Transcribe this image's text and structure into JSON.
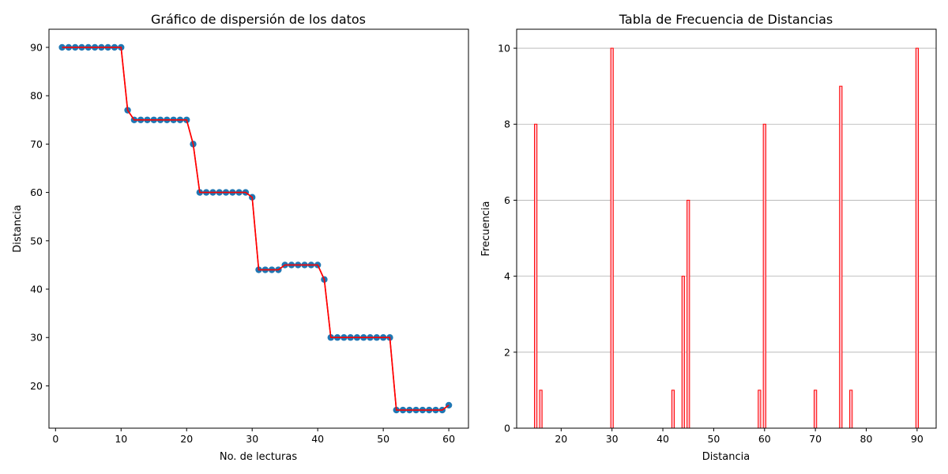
{
  "chart_data": [
    {
      "type": "scatter",
      "title": "Gráfico de dispersión de los datos",
      "xlabel": "No. de lecturas",
      "ylabel": "Distancia",
      "xlim": [
        -1,
        63
      ],
      "ylim": [
        11.25,
        93.75
      ],
      "xticks": [
        0,
        10,
        20,
        30,
        40,
        50,
        60
      ],
      "yticks": [
        20,
        30,
        40,
        50,
        60,
        70,
        80,
        90
      ],
      "grid": false,
      "marker_color": "#1f77b4",
      "line_color": "#ff0000",
      "x": [
        1,
        2,
        3,
        4,
        5,
        6,
        7,
        8,
        9,
        10,
        11,
        12,
        13,
        14,
        15,
        16,
        17,
        18,
        19,
        20,
        21,
        22,
        23,
        24,
        25,
        26,
        27,
        28,
        29,
        30,
        31,
        32,
        33,
        34,
        35,
        36,
        37,
        38,
        39,
        40,
        41,
        42,
        43,
        44,
        45,
        46,
        47,
        48,
        49,
        50,
        51,
        52,
        53,
        54,
        55,
        56,
        57,
        58,
        59,
        60
      ],
      "y": [
        90,
        90,
        90,
        90,
        90,
        90,
        90,
        90,
        90,
        90,
        77,
        75,
        75,
        75,
        75,
        75,
        75,
        75,
        75,
        75,
        70,
        60,
        60,
        60,
        60,
        60,
        60,
        60,
        60,
        59,
        44,
        44,
        44,
        44,
        45,
        45,
        45,
        45,
        45,
        45,
        42,
        30,
        30,
        30,
        30,
        30,
        30,
        30,
        30,
        30,
        30,
        15,
        15,
        15,
        15,
        15,
        15,
        15,
        15,
        16
      ]
    },
    {
      "type": "bar",
      "title": "Tabla de Frecuencia de Distancias",
      "xlabel": "Distancia",
      "ylabel": "Frecuencia",
      "xlim": [
        11.25,
        93.75
      ],
      "ylim": [
        0,
        10.5
      ],
      "xticks": [
        20,
        30,
        40,
        50,
        60,
        70,
        80,
        90
      ],
      "yticks": [
        0,
        2,
        4,
        6,
        8,
        10
      ],
      "grid": "y",
      "bar_fill": "#ffc0cb",
      "bar_edge": "#ff0000",
      "categories": [
        15,
        16,
        30,
        42,
        44,
        45,
        59,
        60,
        70,
        75,
        77,
        90
      ],
      "values": [
        8,
        1,
        10,
        1,
        4,
        6,
        1,
        8,
        1,
        9,
        1,
        10
      ]
    }
  ]
}
